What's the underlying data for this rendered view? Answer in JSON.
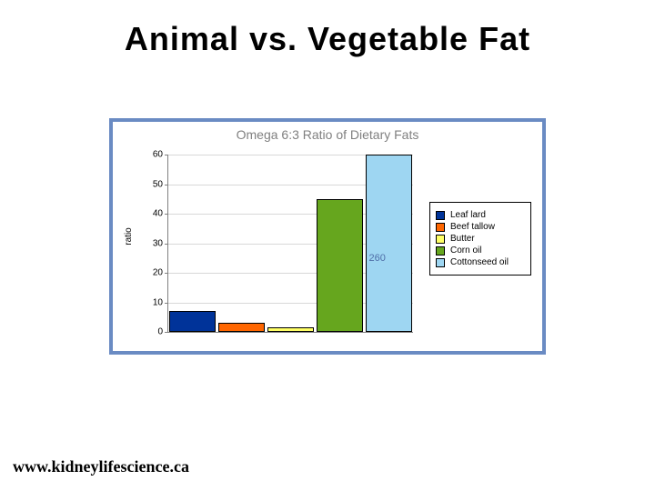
{
  "title": {
    "text": "Animal vs. Vegetable Fat",
    "fontsize": 36,
    "color": "#000000"
  },
  "footer": {
    "text": "www.kidneylifescience.ca"
  },
  "chart_frame": {
    "border_color": "#6a8bc3",
    "background": "#ffffff"
  },
  "chart": {
    "type": "bar",
    "title": "Omega 6:3 Ratio of Dietary Fats",
    "title_fontsize": 14,
    "title_color": "#808080",
    "ylabel": "ratio",
    "label_fontsize": 10,
    "ylim": [
      0,
      60
    ],
    "ytick_step": 10,
    "yticks": [
      0,
      10,
      20,
      30,
      40,
      50,
      60
    ],
    "grid_color": "#d8d8d8",
    "axis_color": "#808080",
    "background_color": "#ffffff",
    "bar_border_color": "#000000",
    "bar_width": 0.95,
    "categories": [
      "Leaf lard",
      "Beef tallow",
      "Butter",
      "Corn oil",
      "Cottonseed oil"
    ],
    "values": [
      7,
      3,
      1.5,
      45,
      60
    ],
    "bar_colors": [
      "#003399",
      "#ff6600",
      "#ffff66",
      "#66a61e",
      "#9ed6f2"
    ],
    "legend": {
      "position": "right",
      "border_color": "#000000",
      "background": "#ffffff",
      "label_fontsize": 10,
      "items": [
        {
          "label": "Leaf lard",
          "color": "#003399"
        },
        {
          "label": "Beef tallow",
          "color": "#ff6600"
        },
        {
          "label": "Butter",
          "color": "#ffff66"
        },
        {
          "label": "Corn oil",
          "color": "#66a61e"
        },
        {
          "label": "Cottonseed oil",
          "color": "#9ed6f2"
        }
      ]
    },
    "annotation": {
      "text": "260",
      "color": "#4f6fa8",
      "fontsize": 11,
      "near_category_index": 4,
      "y_value": 25
    }
  }
}
